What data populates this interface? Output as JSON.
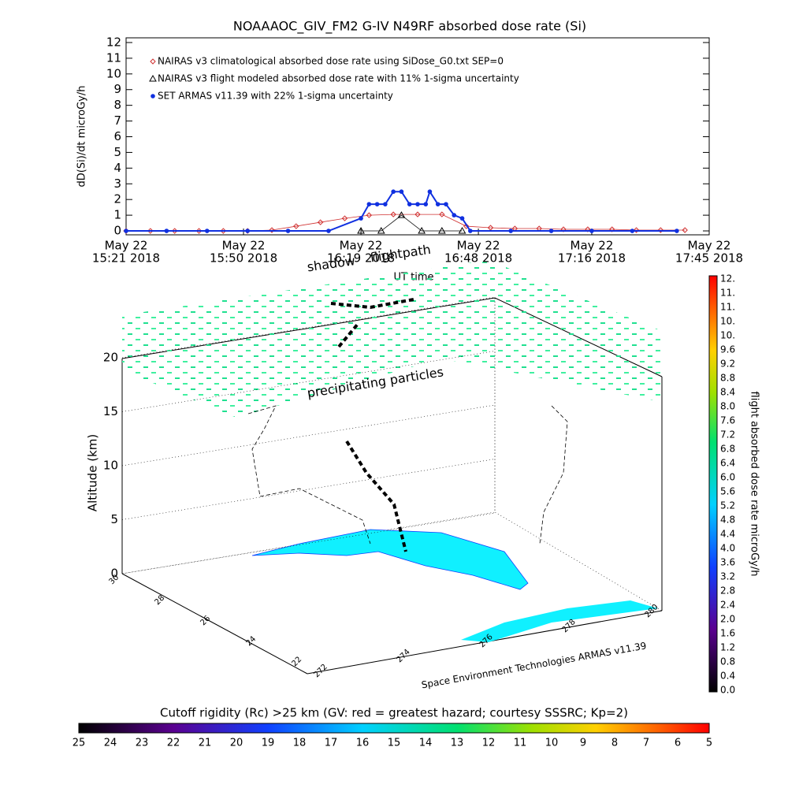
{
  "chart_data": {
    "type": "line",
    "title": "NOAAAOC_GIV_FM2 G-IV   N49RF  absorbed dose rate (Si)",
    "ylabel": "dD(Si)/dt microGy/h",
    "xlabel": "UT time",
    "xlim": [
      "15:21",
      "17:45"
    ],
    "xticks": [
      {
        "value": "15:21",
        "label": "15:21 2018"
      },
      {
        "value": "15:50",
        "label": "15:50 2018"
      },
      {
        "value": "16:19",
        "label": "16:19 2018"
      },
      {
        "value": "16:48",
        "label": "16:48 2018"
      },
      {
        "value": "17:16",
        "label": "17:16 2018"
      },
      {
        "value": "17:45",
        "label": "17:45 2018"
      }
    ],
    "xtick_dates": [
      "May 22",
      "May 22",
      "May 22",
      "May 22",
      "May 22",
      "May 22"
    ],
    "ylim": [
      -0.25,
      12.3
    ],
    "yticks": [
      0,
      1,
      2,
      3,
      4,
      5,
      6,
      7,
      8,
      9,
      10,
      11,
      12
    ],
    "series": [
      {
        "name": "NAIRAS v3 climatological absorbed dose rate using SiDose_G0.txt SEP=0",
        "color": "#d03030",
        "marker": "diamond",
        "x": [
          "15:21",
          "15:27",
          "15:33",
          "15:39",
          "15:45",
          "15:51",
          "15:57",
          "16:03",
          "16:09",
          "16:15",
          "16:21",
          "16:27",
          "16:33",
          "16:39",
          "16:45",
          "16:51",
          "16:57",
          "17:03",
          "17:09",
          "17:15",
          "17:21",
          "17:27",
          "17:33",
          "17:39"
        ],
        "values": [
          0,
          0,
          0,
          0,
          0,
          0,
          0.05,
          0.3,
          0.55,
          0.8,
          1.0,
          1.05,
          1.05,
          1.05,
          0.3,
          0.2,
          0.15,
          0.15,
          0.1,
          0.1,
          0.1,
          0.05,
          0.05,
          0.05
        ]
      },
      {
        "name": "NAIRAS v3 flight modeled absorbed dose rate with 11% 1-sigma uncertainty",
        "color": "#000000",
        "marker": "triangle",
        "x": [
          "16:19",
          "16:24",
          "16:29",
          "16:34",
          "16:39",
          "16:44"
        ],
        "values": [
          0,
          0,
          1.0,
          0,
          0,
          0
        ]
      },
      {
        "name": "SET ARMAS v11.39 with 22% 1-sigma uncertainty",
        "color": "#1030e0",
        "marker": "circle",
        "x": [
          "15:21",
          "15:31",
          "15:41",
          "15:51",
          "16:01",
          "16:11",
          "16:19",
          "16:21",
          "16:23",
          "16:25",
          "16:27",
          "16:29",
          "16:31",
          "16:33",
          "16:35",
          "16:36",
          "16:38",
          "16:40",
          "16:42",
          "16:44",
          "16:46",
          "16:56",
          "17:06",
          "17:16",
          "17:26",
          "17:37"
        ],
        "values": [
          0,
          0,
          0,
          0,
          0,
          0,
          0.8,
          1.7,
          1.7,
          1.7,
          2.5,
          2.5,
          1.7,
          1.7,
          1.7,
          2.5,
          1.7,
          1.7,
          1.0,
          0.8,
          0,
          0,
          0,
          0,
          0,
          0
        ]
      }
    ]
  },
  "plot3d": {
    "shadow": "shadow",
    "flightpath": "flightpath",
    "zlabel": "Altitude (km)",
    "zticks": [
      0,
      5,
      10,
      15,
      20
    ],
    "annotation": "precipitating particles",
    "lat_ticks": [
      30,
      28,
      26,
      24,
      22
    ],
    "lon_ticks": [
      272,
      274,
      276,
      278,
      280
    ],
    "credit": "Space Environment Technologies ARMAS v11.39"
  },
  "dose_colorbar": {
    "title": "flight absorbed dose rate microGy/h",
    "labels": [
      "12.",
      "11.",
      "11.",
      "10.",
      "10.",
      "9.6",
      "9.2",
      "8.8",
      "8.4",
      "8.0",
      "7.6",
      "7.2",
      "6.8",
      "6.4",
      "6.0",
      "5.6",
      "5.2",
      "4.8",
      "4.4",
      "4.0",
      "3.6",
      "3.2",
      "2.8",
      "2.4",
      "2.0",
      "1.6",
      "1.2",
      "0.8",
      "0.4",
      "0.0"
    ]
  },
  "rigidity_colorbar": {
    "title": "Cutoff rigidity (Rc) >25 km (GV: red = greatest hazard; courtesy SSSRC; Kp=2)",
    "ticks": [
      25,
      24,
      23,
      22,
      21,
      20,
      19,
      18,
      17,
      16,
      15,
      14,
      13,
      12,
      11,
      10,
      9,
      8,
      7,
      6,
      5
    ]
  }
}
